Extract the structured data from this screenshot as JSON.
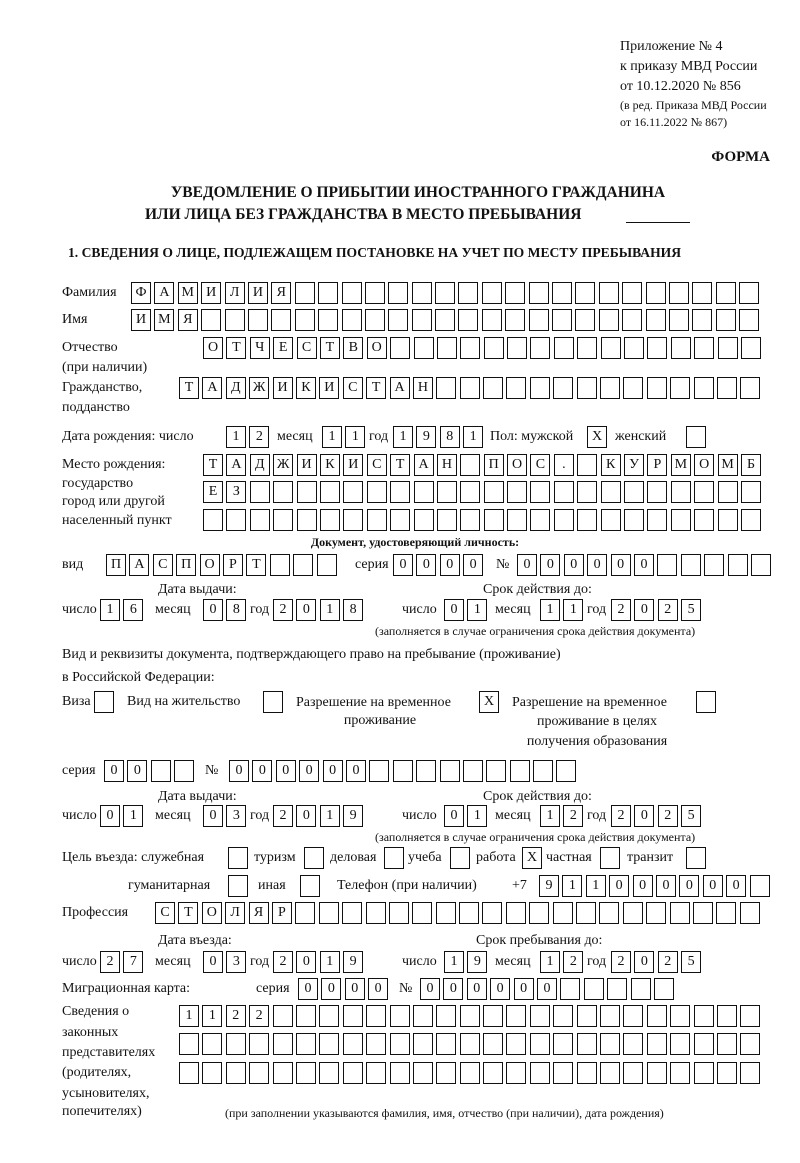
{
  "header": {
    "appendix": "Приложение № 4",
    "order": "к приказу МВД России",
    "order_date": "от 10.12.2020 № 856",
    "edition": "(в ред. Приказа МВД России",
    "edition_date": "от 16.11.2022 № 867)",
    "form_label": "ФОРМА"
  },
  "title": {
    "line1": "УВЕДОМЛЕНИЕ О ПРИБЫТИИ ИНОСТРАННОГО ГРАЖДАНИНА",
    "line2": "ИЛИ ЛИЦА БЕЗ ГРАЖДАНСТВА В МЕСТО ПРЕБЫВАНИЯ"
  },
  "section1": {
    "heading": "1. СВЕДЕНИЯ О ЛИЦЕ, ПОДЛЕЖАЩЕМ ПОСТАНОВКЕ НА УЧЕТ ПО МЕСТУ ПРЕБЫВАНИЯ"
  },
  "labels": {
    "surname": "Фамилия",
    "name": "Имя",
    "patronymic": "Отчество",
    "patronymic_note": "(при наличии)",
    "citizenship": "Гражданство,",
    "citizenship2": "подданство",
    "birth_date": "Дата рождения:  число",
    "day": "число",
    "month": "месяц",
    "year": "год",
    "sex_male": "Пол: мужской",
    "sex_female": "женский",
    "birthplace1": "Место рождения:",
    "birthplace2": "государство",
    "birthplace3": "город или другой",
    "birthplace4": "населенный пункт",
    "id_doc": "Документ, удостоверяющий личность:",
    "doc_type": "вид",
    "series": "серия",
    "number": "№",
    "issue_date": "Дата выдачи:",
    "expiry_date": "Срок действия до:",
    "expiry_note": "(заполняется в случае ограничения срока действия документа)",
    "stay_doc1": "Вид и реквизиты документа, подтверждающего право на пребывание (проживание)",
    "stay_doc2": "в Российской Федерации:",
    "visa": "Виза",
    "residence_permit": "Вид на жительство",
    "temp_permit1": "Разрешение на временное",
    "temp_permit2": "проживание",
    "edu_permit1": "Разрешение на временное",
    "edu_permit2": "проживание в целях",
    "edu_permit3": "получения образования",
    "purpose": "Цель въезда: служебная",
    "tourism": "туризм",
    "business": "деловая",
    "study": "учеба",
    "work": "работа",
    "private": "частная",
    "transit": "транзит",
    "humanitarian": "гуманитарная",
    "other": "иная",
    "phone": "Телефон (при наличии)",
    "phone_prefix": "+7",
    "profession": "Профессия",
    "entry_date": "Дата въезда:",
    "stay_until": "Срок пребывания до:",
    "migration_card": "Миграционная карта:",
    "reps1": "Сведения о",
    "reps2": "законных",
    "reps3": "представителях",
    "reps4": "(родителях,",
    "reps5": "усыновителях,",
    "reps6": "попечителях)",
    "reps_note": "(при заполнении указываются фамилия, имя, отчество (при наличии), дата рождения)"
  },
  "fields": {
    "surname": "ФАМИЛИЯ",
    "name": "ИМЯ",
    "patronymic": "ОТЧЕСТВО",
    "citizenship": "ТАДЖИКИСТАН",
    "birth_day": "12",
    "birth_month": "11",
    "birth_year": "1981",
    "sex_male": "X",
    "sex_female": "",
    "birthplace_line1": "ТАДЖИКИСТАН ПОС. КУРМОМБ",
    "birthplace_line2": "ЕЗ",
    "birthplace_line3": "",
    "doc_type": "ПАСПОРТ",
    "doc_series": "0000",
    "doc_number": "000000",
    "doc_issue": {
      "day": "16",
      "month": "08",
      "year": "2018"
    },
    "doc_expiry": {
      "day": "01",
      "month": "11",
      "year": "2025"
    },
    "stay_doc_visa": "",
    "stay_doc_residence": "",
    "stay_doc_temp_permit": "X",
    "stay_doc_edu_permit": "",
    "stay_doc_series": "00",
    "stay_doc_number": "000000",
    "stay_doc_issue": {
      "day": "01",
      "month": "03",
      "year": "2019"
    },
    "stay_doc_expiry": {
      "day": "01",
      "month": "12",
      "year": "2025"
    },
    "purpose": {
      "official": "",
      "tourism": "",
      "business": "",
      "study": "",
      "work": "X",
      "private": "",
      "transit": "",
      "humanitarian": "",
      "other": ""
    },
    "phone": "911000000",
    "profession": "СТОЛЯР",
    "entry_date": {
      "day": "27",
      "month": "03",
      "year": "2019"
    },
    "stay_until": {
      "day": "19",
      "month": "12",
      "year": "2025"
    },
    "migration_series": "0000",
    "migration_number": "000000",
    "legal_reps_line1": "1122",
    "legal_reps_line2": "",
    "legal_reps_line3": ""
  }
}
